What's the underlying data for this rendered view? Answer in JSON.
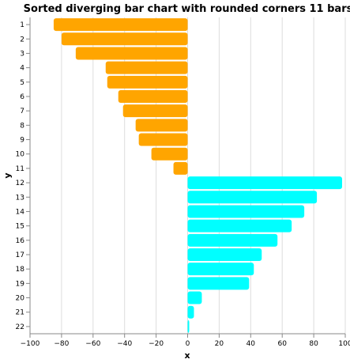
{
  "chart_data": {
    "type": "bar",
    "orientation": "horizontal",
    "title": "Sorted diverging bar chart with rounded corners 11 bars",
    "xlabel": "x",
    "ylabel": "y",
    "xlim": [
      -100,
      100
    ],
    "x_ticks": [
      -100,
      -80,
      -60,
      -40,
      -20,
      0,
      20,
      40,
      60,
      80,
      100
    ],
    "grid": true,
    "categories": [
      "1",
      "2",
      "3",
      "4",
      "5",
      "6",
      "7",
      "8",
      "9",
      "10",
      "11",
      "12",
      "13",
      "14",
      "15",
      "16",
      "17",
      "18",
      "19",
      "20",
      "21",
      "22"
    ],
    "values": [
      -85,
      -80,
      -71,
      -52,
      -51,
      -44,
      -41,
      -33,
      -31,
      -23,
      -9,
      98,
      82,
      74,
      66,
      57,
      47,
      42,
      39,
      9,
      4,
      1
    ],
    "colors": {
      "negative": "#ffa500",
      "positive": "#00ffff"
    }
  }
}
